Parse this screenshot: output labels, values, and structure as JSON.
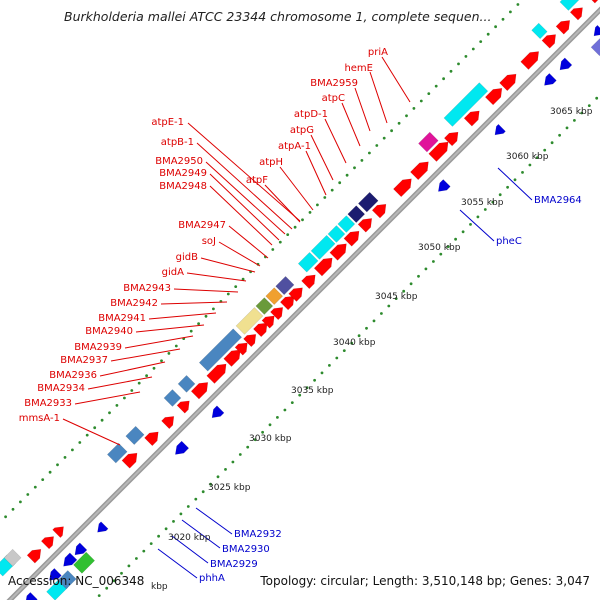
{
  "title": "Burkholderia mallei ATCC 23344 chromosome 1, complete sequen...",
  "footer": {
    "accession": "Accession: NC_006348",
    "summary": "Topology: circular; Length: 3,510,148 bp; Genes: 3,047"
  },
  "colors": {
    "backbone": "#999999",
    "tick_dots": "#2e8b2e",
    "forward_gene": "#ff0000",
    "reverse_gene": "#0000dd",
    "forward_label": "#dd0000",
    "reverse_label": "#0000cc",
    "cog_cyan": "#00e8f0",
    "cog_steelblue": "#4a86c0",
    "cog_navy": "#1c1c70",
    "cog_slate": "#5050a0",
    "cog_magenta": "#e0149a",
    "cog_khaki": "#f0e090",
    "cog_olive": "#6a9a3a",
    "cog_orange": "#f0a030",
    "cog_green": "#30c030",
    "cog_lavender": "#7070d8",
    "cog_grey": "#c8c8c8"
  },
  "scale_ticks": [
    {
      "label": "3020 kbp"
    },
    {
      "label": "3025 kbp"
    },
    {
      "label": "3030 kbp"
    },
    {
      "label": "3035 kbp"
    },
    {
      "label": "3040 kbp"
    },
    {
      "label": "3045 kbp"
    },
    {
      "label": "3050 kbp"
    },
    {
      "label": "3055 kbp"
    },
    {
      "label": "3060 kbp"
    },
    {
      "label": "3065 kbp"
    },
    {
      "label": "kbp"
    }
  ],
  "forward_labels": [
    "priA",
    "hemE",
    "BMA2959",
    "atpC",
    "atpD-1",
    "atpG",
    "atpA-1",
    "atpH",
    "atpF",
    "atpE-1",
    "atpB-1",
    "BMA2950",
    "BMA2949",
    "BMA2948",
    "BMA2947",
    "soJ",
    "gidB",
    "gidA",
    "BMA2943",
    "BMA2942",
    "BMA2941",
    "BMA2940",
    "BMA2939",
    "BMA2937",
    "BMA2936",
    "BMA2934",
    "BMA2933",
    "mmsA-1"
  ],
  "reverse_labels": [
    "BMA2964",
    "pheC",
    "BMA2932",
    "BMA2930",
    "BMA2929",
    "phhA"
  ]
}
